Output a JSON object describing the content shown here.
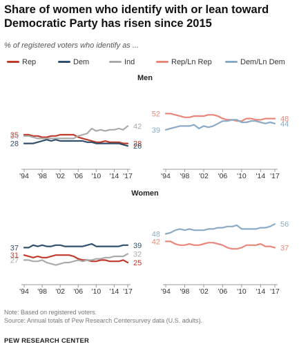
{
  "title": "Share of women who identify with or lean toward Democratic Party has risen since 2015",
  "subtitle": "% of registered voters who identify as ...",
  "legend": [
    {
      "label": "Rep",
      "color": "#c0392b"
    },
    {
      "label": "Dem",
      "color": "#2f4f6b"
    },
    {
      "label": "Ind",
      "color": "#aaaaaa"
    },
    {
      "label": "Rep/Ln Rep",
      "color": "#e8877a"
    },
    {
      "label": "Dem/Ln Dem",
      "color": "#8aaac5"
    }
  ],
  "footer": {
    "note": "Note: Based on registered voters.",
    "source": "Source: Annual totals of Pew Research Centersurvey data (U.S. adults)."
  },
  "brand": "PEW RESEARCH CENTER",
  "chart_data": [
    {
      "type": "line",
      "group": "Men",
      "title": "Men",
      "x": [
        1994,
        1995,
        1996,
        1997,
        1998,
        1999,
        2000,
        2001,
        2002,
        2003,
        2004,
        2005,
        2006,
        2007,
        2008,
        2009,
        2010,
        2011,
        2012,
        2013,
        2014,
        2015,
        2016,
        2017
      ],
      "xticks": [
        "'94",
        "'98",
        "'02",
        "'06",
        "'10",
        "'14",
        "'17"
      ],
      "ylim": [
        10,
        60
      ],
      "series": [
        {
          "name": "Rep",
          "color": "#c0392b",
          "start_label": "35",
          "end_label": "28",
          "values": [
            35,
            35,
            34,
            34,
            33,
            33,
            34,
            34,
            35,
            35,
            35,
            35,
            33,
            32,
            31,
            30,
            29,
            29,
            30,
            29,
            29,
            29,
            28,
            28
          ]
        },
        {
          "name": "Dem",
          "color": "#2f4f6b",
          "start_label": "28",
          "end_label": "26",
          "values": [
            28,
            28,
            28,
            29,
            30,
            31,
            30,
            31,
            30,
            30,
            30,
            30,
            30,
            30,
            29,
            29,
            28,
            28,
            28,
            28,
            28,
            28,
            27,
            26
          ]
        },
        {
          "name": "Ind",
          "color": "#aaaaaa",
          "start_label": "34",
          "end_label": "42",
          "values": [
            34,
            34,
            33,
            32,
            32,
            32,
            32,
            32,
            32,
            32,
            32,
            32,
            34,
            35,
            36,
            40,
            38,
            39,
            38,
            39,
            39,
            40,
            39,
            42
          ]
        }
      ]
    },
    {
      "type": "line",
      "group": "Men",
      "title": "",
      "x": [
        1994,
        1995,
        1996,
        1997,
        1998,
        1999,
        2000,
        2001,
        2002,
        2003,
        2004,
        2005,
        2006,
        2007,
        2008,
        2009,
        2010,
        2011,
        2012,
        2013,
        2014,
        2015,
        2016,
        2017
      ],
      "xticks": [
        "'94",
        "'98",
        "'02",
        "'06",
        "'10",
        "'14",
        "'17"
      ],
      "ylim": [
        10,
        60
      ],
      "series": [
        {
          "name": "Rep/Ln Rep",
          "color": "#e8877a",
          "start_label": "52",
          "end_label": "48",
          "values": [
            52,
            52,
            51,
            50,
            49,
            49,
            50,
            50,
            50,
            51,
            51,
            50,
            48,
            47,
            47,
            46,
            46,
            48,
            48,
            47,
            47,
            48,
            48,
            48
          ]
        },
        {
          "name": "Dem/Ln Dem",
          "color": "#8aaac5",
          "start_label": "39",
          "end_label": "44",
          "values": [
            39,
            40,
            41,
            42,
            42,
            42,
            43,
            40,
            42,
            41,
            42,
            44,
            46,
            46,
            47,
            47,
            45,
            45,
            46,
            46,
            45,
            44,
            45,
            44
          ]
        }
      ]
    },
    {
      "type": "line",
      "group": "Women",
      "title": "Women",
      "x": [
        1994,
        1995,
        1996,
        1997,
        1998,
        1999,
        2000,
        2001,
        2002,
        2003,
        2004,
        2005,
        2006,
        2007,
        2008,
        2009,
        2010,
        2011,
        2012,
        2013,
        2014,
        2015,
        2016,
        2017
      ],
      "xticks": [
        "'94",
        "'98",
        "'02",
        "'06",
        "'10",
        "'14",
        "'17"
      ],
      "ylim": [
        10,
        60
      ],
      "series": [
        {
          "name": "Dem",
          "color": "#2f4f6b",
          "start_label": "37",
          "end_label": "39",
          "values": [
            37,
            37,
            39,
            38,
            39,
            38,
            38,
            39,
            39,
            38,
            38,
            38,
            38,
            38,
            39,
            40,
            38,
            38,
            38,
            38,
            38,
            38,
            39,
            39
          ]
        },
        {
          "name": "Rep",
          "color": "#c0392b",
          "start_label": "31",
          "end_label": "25",
          "values": [
            31,
            30,
            29,
            30,
            29,
            29,
            30,
            31,
            31,
            31,
            31,
            30,
            28,
            27,
            27,
            26,
            26,
            27,
            27,
            26,
            26,
            26,
            27,
            25
          ]
        },
        {
          "name": "Ind",
          "color": "#aaaaaa",
          "start_label": "27",
          "end_label": "32",
          "values": [
            27,
            27,
            26,
            26,
            27,
            25,
            24,
            23,
            24,
            25,
            25,
            26,
            27,
            26,
            27,
            27,
            28,
            28,
            29,
            29,
            30,
            30,
            30,
            32
          ]
        }
      ]
    },
    {
      "type": "line",
      "group": "Women",
      "title": "",
      "x": [
        1994,
        1995,
        1996,
        1997,
        1998,
        1999,
        2000,
        2001,
        2002,
        2003,
        2004,
        2005,
        2006,
        2007,
        2008,
        2009,
        2010,
        2011,
        2012,
        2013,
        2014,
        2015,
        2016,
        2017
      ],
      "xticks": [
        "'94",
        "'98",
        "'02",
        "'06",
        "'10",
        "'14",
        "'17"
      ],
      "ylim": [
        10,
        60
      ],
      "series": [
        {
          "name": "Dem/Ln Dem",
          "color": "#8aaac5",
          "start_label": "48",
          "end_label": "56",
          "values": [
            48,
            49,
            51,
            52,
            51,
            52,
            51,
            51,
            51,
            52,
            52,
            53,
            53,
            54,
            54,
            55,
            52,
            52,
            52,
            52,
            53,
            53,
            54,
            56
          ]
        },
        {
          "name": "Rep/Ln Rep",
          "color": "#e8877a",
          "start_label": "42",
          "end_label": "37",
          "values": [
            42,
            42,
            40,
            39,
            39,
            40,
            39,
            39,
            40,
            41,
            41,
            40,
            39,
            37,
            36,
            36,
            37,
            39,
            39,
            39,
            40,
            38,
            38,
            37
          ]
        }
      ]
    }
  ]
}
